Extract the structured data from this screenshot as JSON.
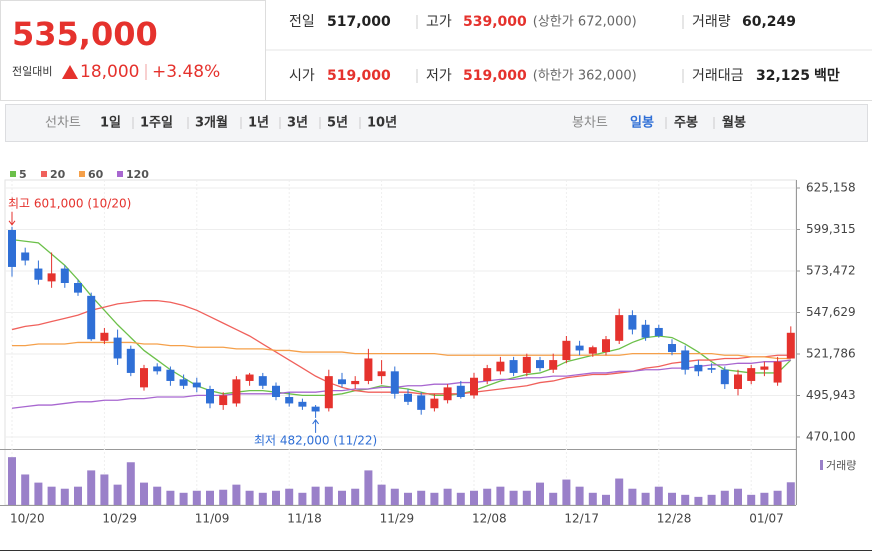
{
  "header": {
    "price": "535,000",
    "change_label": "전일대비",
    "change": "18,000",
    "change_pct": "+3.48%",
    "rows": [
      [
        {
          "label": "전일",
          "value": "517,000"
        },
        {
          "label": "고가",
          "value": "539,000",
          "note": "(상한가 672,000)"
        },
        {
          "label": "거래량",
          "value": "60,249"
        }
      ],
      [
        {
          "label": "시가",
          "value": "519,000"
        },
        {
          "label": "저가",
          "value": "519,000",
          "note": "(하한가 362,000)"
        },
        {
          "label": "거래대금",
          "value": "32,125",
          "unit": "백만"
        }
      ]
    ]
  },
  "toolbar": {
    "line_label": "선차트",
    "line_periods": [
      "1일",
      "1주일",
      "3개월",
      "1년",
      "3년",
      "5년",
      "10년"
    ],
    "candle_label": "봉차트",
    "candle_periods": [
      "일봉",
      "주봉",
      "월봉"
    ]
  },
  "chart_data": {
    "type": "candlestick",
    "up_color": "#e5322d",
    "down_color": "#2f6fd6",
    "categories": [
      "10/20",
      null,
      null,
      null,
      null,
      null,
      null,
      "10/29",
      null,
      null,
      null,
      null,
      null,
      null,
      "11/09",
      null,
      null,
      null,
      null,
      null,
      null,
      "11/18",
      null,
      null,
      null,
      null,
      null,
      null,
      "11/29",
      null,
      null,
      null,
      null,
      null,
      null,
      "12/08",
      null,
      null,
      null,
      null,
      null,
      null,
      "12/17",
      null,
      null,
      null,
      null,
      null,
      null,
      "12/28",
      null,
      null,
      null,
      null,
      null,
      null,
      "01/07",
      null,
      null,
      null
    ],
    "open": [
      599000,
      585000,
      575000,
      567000,
      575000,
      566000,
      558000,
      530000,
      532000,
      525000,
      501000,
      514000,
      512000,
      506000,
      504000,
      500000,
      490000,
      491000,
      505000,
      508000,
      502000,
      495000,
      492000,
      489000,
      488000,
      506000,
      503000,
      505000,
      508000,
      511000,
      497000,
      496000,
      488000,
      493000,
      502000,
      496000,
      505000,
      511000,
      518000,
      510000,
      518000,
      512000,
      518000,
      527000,
      522000,
      523000,
      530000,
      546000,
      540000,
      538000,
      528000,
      524000,
      515000,
      513000,
      512000,
      500000,
      505000,
      512000,
      504000,
      519000
    ],
    "high": [
      601000,
      588000,
      580000,
      585000,
      577000,
      568000,
      560000,
      538000,
      537000,
      527000,
      515000,
      516000,
      514000,
      509000,
      507000,
      502000,
      498000,
      508000,
      510000,
      510000,
      504000,
      498000,
      494000,
      490000,
      512000,
      510000,
      508000,
      525000,
      518000,
      514000,
      500000,
      498000,
      497000,
      503000,
      505000,
      510000,
      515000,
      520000,
      520000,
      522000,
      520000,
      522000,
      533000,
      530000,
      527000,
      533000,
      550000,
      549000,
      543000,
      540000,
      531000,
      527000,
      518000,
      516000,
      514000,
      512000,
      515000,
      517000,
      520000,
      539000
    ],
    "low": [
      570000,
      577000,
      565000,
      563000,
      563000,
      558000,
      530000,
      528000,
      515000,
      508000,
      499000,
      509000,
      502000,
      500000,
      498000,
      488000,
      487000,
      489000,
      502000,
      500000,
      493000,
      489000,
      487000,
      482000,
      486000,
      501000,
      500000,
      503000,
      503000,
      494000,
      490000,
      484000,
      486000,
      491000,
      494000,
      494000,
      503000,
      509000,
      508000,
      508000,
      511000,
      510000,
      516000,
      521000,
      520000,
      521000,
      528000,
      534000,
      530000,
      532000,
      521000,
      509000,
      508000,
      510000,
      500000,
      496000,
      503000,
      508000,
      502000,
      519000
    ],
    "close": [
      576000,
      580000,
      568000,
      572000,
      566000,
      560000,
      531000,
      535000,
      519000,
      510000,
      513000,
      511000,
      505000,
      502000,
      501000,
      491000,
      496000,
      506000,
      509000,
      502000,
      495000,
      491000,
      489000,
      486000,
      508000,
      503000,
      505000,
      519000,
      511000,
      497000,
      492000,
      487000,
      494000,
      501000,
      495000,
      507000,
      513000,
      517000,
      510000,
      520000,
      513000,
      518000,
      530000,
      524000,
      526000,
      531000,
      546000,
      537000,
      532000,
      533000,
      523000,
      512000,
      511000,
      512000,
      503000,
      509000,
      513000,
      514000,
      517000,
      535000
    ],
    "series": [
      {
        "name": "5",
        "color": "#6cc04a",
        "values": [
          593000,
          592000,
          591000,
          584000,
          577000,
          568000,
          558000,
          549000,
          540000,
          532000,
          524000,
          518000,
          512000,
          507000,
          502000,
          499000,
          497000,
          498000,
          499000,
          499000,
          498000,
          497000,
          496000,
          496000,
          496000,
          497000,
          499000,
          500000,
          502000,
          501000,
          500000,
          498000,
          496000,
          496000,
          497000,
          499000,
          502000,
          505000,
          507000,
          509000,
          510000,
          513000,
          517000,
          519000,
          521000,
          523000,
          525000,
          529000,
          532000,
          533000,
          532000,
          528000,
          523000,
          517000,
          512000,
          511000,
          510000,
          510000,
          510000,
          518000
        ]
      },
      {
        "name": "20",
        "color": "#f0615c",
        "values": [
          537000,
          539000,
          540000,
          542000,
          544000,
          546000,
          549000,
          551000,
          553000,
          554000,
          555000,
          555000,
          554000,
          552000,
          549000,
          545000,
          541000,
          537000,
          533000,
          528000,
          523000,
          518000,
          513000,
          508000,
          504000,
          501000,
          499000,
          498000,
          498000,
          498000,
          498000,
          497000,
          497000,
          497000,
          497000,
          498000,
          499000,
          500000,
          501000,
          502000,
          504000,
          505000,
          507000,
          508000,
          509000,
          509000,
          510000,
          511000,
          513000,
          514000,
          516000,
          517000,
          518000,
          518000,
          519000,
          519000,
          520000,
          520000,
          521000,
          521000
        ]
      },
      {
        "name": "60",
        "color": "#f5a04a",
        "values": [
          527000,
          527000,
          528000,
          528000,
          528000,
          529000,
          529000,
          529000,
          529000,
          529000,
          528000,
          528000,
          527000,
          527000,
          526000,
          526000,
          526000,
          525000,
          525000,
          525000,
          524000,
          524000,
          523000,
          523000,
          523000,
          523000,
          522000,
          522000,
          522000,
          522000,
          522000,
          522000,
          522000,
          521000,
          521000,
          521000,
          521000,
          521000,
          521000,
          521000,
          521000,
          521000,
          521000,
          521000,
          521000,
          521000,
          521000,
          522000,
          522000,
          522000,
          522000,
          522000,
          522000,
          522000,
          521000,
          521000,
          520000,
          520000,
          519000,
          519000
        ]
      },
      {
        "name": "120",
        "color": "#a867d0",
        "values": [
          488000,
          489000,
          490000,
          490000,
          491000,
          492000,
          492000,
          493000,
          493000,
          494000,
          494000,
          495000,
          495000,
          495000,
          496000,
          496000,
          496000,
          497000,
          497000,
          497000,
          497000,
          498000,
          498000,
          498000,
          499000,
          499000,
          500000,
          500000,
          501000,
          501000,
          502000,
          502000,
          503000,
          503000,
          504000,
          504000,
          505000,
          506000,
          506000,
          507000,
          507000,
          508000,
          508000,
          509000,
          510000,
          510000,
          511000,
          511000,
          512000,
          512000,
          513000,
          513000,
          514000,
          515000,
          515000,
          516000,
          516000,
          517000,
          517000,
          518000
        ]
      }
    ],
    "ylim": [
      470100,
      625158
    ],
    "yticks": [
      {
        "value": 625158,
        "label": "625,158"
      },
      {
        "value": 599315,
        "label": "599,315"
      },
      {
        "value": 573472,
        "label": "573,472"
      },
      {
        "value": 547629,
        "label": "547,629"
      },
      {
        "value": 521786,
        "label": "521,786"
      },
      {
        "value": 495943,
        "label": "495,943"
      },
      {
        "value": 470100,
        "label": "470,100"
      }
    ],
    "grid": true,
    "annotations": [
      {
        "text": "최고 601,000 (10/20)",
        "value": 601000,
        "color": "#e5322d"
      },
      {
        "text": "최저 482,000 (11/22)",
        "value": 482000,
        "color": "#2f6fd6"
      }
    ],
    "volume": {
      "name": "거래량",
      "color": "#9a80c9",
      "ylim": [
        0,
        130000
      ],
      "values": [
        126900,
        81000,
        59400,
        48600,
        43200,
        48600,
        91800,
        81000,
        54000,
        113400,
        59400,
        48600,
        37800,
        32400,
        37800,
        37800,
        40500,
        54000,
        37800,
        32400,
        37800,
        43200,
        32400,
        48600,
        48600,
        37800,
        43200,
        91800,
        54000,
        43200,
        32400,
        37800,
        32400,
        43200,
        32400,
        37800,
        43200,
        48600,
        37800,
        37800,
        59400,
        32400,
        67500,
        48600,
        32400,
        27000,
        70200,
        43200,
        32400,
        48600,
        32400,
        27000,
        21600,
        27000,
        37800,
        43200,
        27000,
        32400,
        37800,
        60249
      ]
    }
  }
}
